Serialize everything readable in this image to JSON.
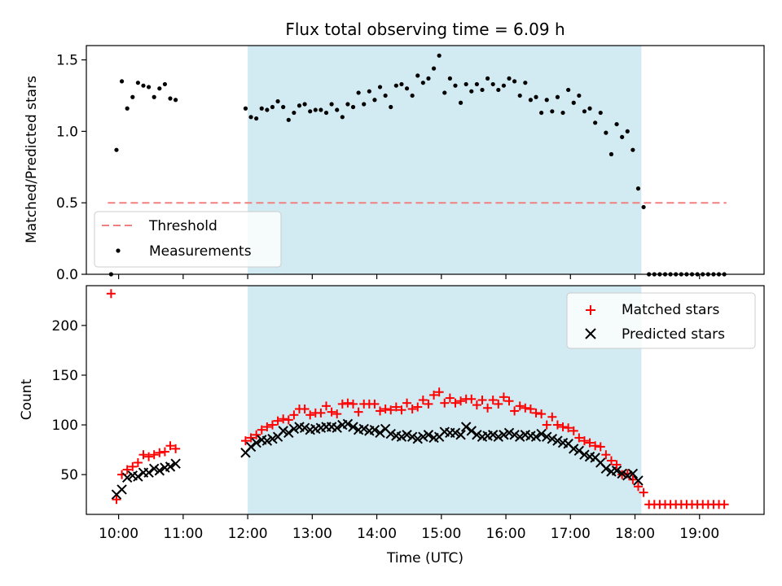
{
  "title": "Flux total observing time = 6.09 h",
  "colors": {
    "shade": "#add8e6",
    "threshold": "#f08080",
    "matched": "#ff0000",
    "predicted": "#000000",
    "measurements": "#000000"
  },
  "chart_data": [
    {
      "type": "scatter",
      "panel": "top",
      "ylabel": "Matched/Predicted stars",
      "ylim": [
        0,
        1.6
      ],
      "yticks": [
        0.0,
        0.5,
        1.0,
        1.5
      ],
      "ytick_labels": [
        "0.0",
        "0.5",
        "1.0",
        "1.5"
      ],
      "shaded_interval": [
        "12:00",
        "18:06"
      ],
      "legend_position": "lower-left",
      "threshold": {
        "name": "Threshold",
        "value": 0.5,
        "x_range": [
          "09:50",
          "19:25"
        ],
        "style": "dashed"
      },
      "series": [
        {
          "name": "Measurements",
          "x": [
            "09:53",
            "09:58",
            "10:03",
            "10:08",
            "10:13",
            "10:18",
            "10:23",
            "10:28",
            "10:33",
            "10:38",
            "10:43",
            "10:48",
            "10:53",
            "11:58",
            "12:03",
            "12:08",
            "12:13",
            "12:18",
            "12:23",
            "12:28",
            "12:33",
            "12:38",
            "12:43",
            "12:48",
            "12:53",
            "12:58",
            "13:03",
            "13:08",
            "13:13",
            "13:18",
            "13:23",
            "13:28",
            "13:33",
            "13:38",
            "13:43",
            "13:48",
            "13:53",
            "13:58",
            "14:03",
            "14:08",
            "14:13",
            "14:18",
            "14:23",
            "14:28",
            "14:33",
            "14:38",
            "14:43",
            "14:48",
            "14:53",
            "14:58",
            "15:03",
            "15:08",
            "15:13",
            "15:18",
            "15:23",
            "15:28",
            "15:33",
            "15:38",
            "15:43",
            "15:48",
            "15:53",
            "15:58",
            "16:03",
            "16:08",
            "16:13",
            "16:18",
            "16:23",
            "16:28",
            "16:33",
            "16:38",
            "16:43",
            "16:48",
            "16:53",
            "16:58",
            "17:03",
            "17:08",
            "17:13",
            "17:18",
            "17:23",
            "17:28",
            "17:33",
            "17:38",
            "17:43",
            "17:48",
            "17:53",
            "17:58",
            "18:03",
            "18:08",
            "18:13",
            "18:18",
            "18:23",
            "18:28",
            "18:33",
            "18:38",
            "18:43",
            "18:48",
            "18:53",
            "18:58",
            "19:03",
            "19:08",
            "19:13",
            "19:18",
            "19:23"
          ],
          "y": [
            0.0,
            0.87,
            1.35,
            1.16,
            1.24,
            1.34,
            1.32,
            1.31,
            1.24,
            1.3,
            1.33,
            1.23,
            1.22,
            1.16,
            1.1,
            1.09,
            1.16,
            1.15,
            1.17,
            1.21,
            1.17,
            1.08,
            1.13,
            1.18,
            1.19,
            1.14,
            1.15,
            1.15,
            1.13,
            1.19,
            1.15,
            1.1,
            1.19,
            1.17,
            1.27,
            1.19,
            1.28,
            1.22,
            1.31,
            1.25,
            1.17,
            1.32,
            1.33,
            1.3,
            1.25,
            1.39,
            1.34,
            1.37,
            1.44,
            1.53,
            1.27,
            1.37,
            1.32,
            1.2,
            1.33,
            1.28,
            1.33,
            1.29,
            1.37,
            1.33,
            1.29,
            1.32,
            1.37,
            1.35,
            1.25,
            1.34,
            1.22,
            1.24,
            1.13,
            1.22,
            1.14,
            1.24,
            1.13,
            1.29,
            1.2,
            1.25,
            1.14,
            1.16,
            1.06,
            1.13,
            0.99,
            0.84,
            1.05,
            0.96,
            1.0,
            0.87,
            0.6,
            0.47,
            0.0,
            0.0,
            0.0,
            0.0,
            0.0,
            0.0,
            0.0,
            0.0,
            0.0,
            0.0,
            0.0,
            0.0,
            0.0,
            0.0,
            0.0
          ]
        }
      ]
    },
    {
      "type": "scatter",
      "panel": "bottom",
      "ylabel": "Count",
      "xlabel": "Time (UTC)",
      "ylim": [
        10,
        240
      ],
      "yticks": [
        50,
        100,
        150,
        200
      ],
      "ytick_labels": [
        "50",
        "100",
        "150",
        "200"
      ],
      "xlim": [
        "09:30",
        "20:00"
      ],
      "xticks": [
        "10:00",
        "11:00",
        "12:00",
        "13:00",
        "14:00",
        "15:00",
        "16:00",
        "17:00",
        "18:00",
        "19:00"
      ],
      "shaded_interval": [
        "12:00",
        "18:06"
      ],
      "legend_position": "upper-right",
      "series": [
        {
          "name": "Matched stars",
          "marker": "plus",
          "x": [
            "09:53",
            "09:58",
            "10:03",
            "10:08",
            "10:13",
            "10:18",
            "10:23",
            "10:28",
            "10:33",
            "10:38",
            "10:43",
            "10:48",
            "10:53",
            "11:58",
            "12:03",
            "12:08",
            "12:13",
            "12:18",
            "12:23",
            "12:28",
            "12:33",
            "12:38",
            "12:43",
            "12:48",
            "12:53",
            "12:58",
            "13:03",
            "13:08",
            "13:13",
            "13:18",
            "13:23",
            "13:28",
            "13:33",
            "13:38",
            "13:43",
            "13:48",
            "13:53",
            "13:58",
            "14:03",
            "14:08",
            "14:13",
            "14:18",
            "14:23",
            "14:28",
            "14:33",
            "14:38",
            "14:43",
            "14:48",
            "14:53",
            "14:58",
            "15:03",
            "15:08",
            "15:13",
            "15:18",
            "15:23",
            "15:28",
            "15:33",
            "15:38",
            "15:43",
            "15:48",
            "15:53",
            "15:58",
            "16:03",
            "16:08",
            "16:13",
            "16:18",
            "16:23",
            "16:28",
            "16:33",
            "16:38",
            "16:43",
            "16:48",
            "16:53",
            "16:58",
            "17:03",
            "17:08",
            "17:13",
            "17:18",
            "17:23",
            "17:28",
            "17:33",
            "17:38",
            "17:43",
            "17:48",
            "17:53",
            "17:58",
            "18:03",
            "18:08",
            "18:13",
            "18:18",
            "18:23",
            "18:28",
            "18:33",
            "18:38",
            "18:43",
            "18:48",
            "18:53",
            "18:58",
            "19:03",
            "19:08",
            "19:13",
            "19:18",
            "19:23"
          ],
          "y": [
            232,
            25,
            50,
            55,
            58,
            62,
            70,
            68,
            70,
            72,
            73,
            79,
            76,
            84,
            87,
            90,
            95,
            98,
            100,
            104,
            106,
            105,
            110,
            116,
            116,
            110,
            112,
            112,
            119,
            113,
            111,
            121,
            122,
            121,
            113,
            121,
            121,
            121,
            114,
            116,
            115,
            118,
            115,
            122,
            116,
            118,
            125,
            121,
            130,
            133,
            122,
            127,
            122,
            124,
            126,
            126,
            120,
            125,
            117,
            125,
            121,
            128,
            124,
            114,
            119,
            117,
            116,
            112,
            111,
            100,
            108,
            100,
            98,
            97,
            94,
            87,
            84,
            82,
            79,
            78,
            70,
            64,
            60,
            50,
            51,
            45,
            38,
            32,
            20,
            20,
            20,
            20,
            20,
            20,
            20,
            20,
            20,
            20,
            20,
            20,
            20,
            20,
            20
          ]
        },
        {
          "name": "Predicted stars",
          "marker": "x",
          "x": [
            "09:53",
            "09:58",
            "10:03",
            "10:08",
            "10:13",
            "10:18",
            "10:23",
            "10:28",
            "10:33",
            "10:38",
            "10:43",
            "10:48",
            "10:53",
            "11:58",
            "12:03",
            "12:08",
            "12:13",
            "12:18",
            "12:23",
            "12:28",
            "12:33",
            "12:38",
            "12:43",
            "12:48",
            "12:53",
            "12:58",
            "13:03",
            "13:08",
            "13:13",
            "13:18",
            "13:23",
            "13:28",
            "13:33",
            "13:38",
            "13:43",
            "13:48",
            "13:53",
            "13:58",
            "14:03",
            "14:08",
            "14:13",
            "14:18",
            "14:23",
            "14:28",
            "14:33",
            "14:38",
            "14:43",
            "14:48",
            "14:53",
            "14:58",
            "15:03",
            "15:08",
            "15:13",
            "15:18",
            "15:23",
            "15:28",
            "15:33",
            "15:38",
            "15:43",
            "15:48",
            "15:53",
            "15:58",
            "16:03",
            "16:08",
            "16:13",
            "16:18",
            "16:23",
            "16:28",
            "16:33",
            "16:38",
            "16:43",
            "16:48",
            "16:53",
            "16:58",
            "17:03",
            "17:08",
            "17:13",
            "17:18",
            "17:23",
            "17:28",
            "17:33",
            "17:38",
            "17:43",
            "17:48",
            "17:53",
            "17:58",
            "18:03",
            "18:08",
            "18:13",
            "18:18",
            "18:23",
            "18:28",
            "18:33",
            "18:38",
            "18:43",
            "18:48",
            "18:53",
            "18:58",
            "19:03",
            "19:08",
            "19:13",
            "19:18",
            "19:23"
          ],
          "y": [
            null,
            30,
            35,
            47,
            49,
            48,
            52,
            52,
            56,
            54,
            57,
            58,
            61,
            72,
            78,
            82,
            85,
            84,
            86,
            88,
            94,
            92,
            96,
            98,
            97,
            95,
            96,
            97,
            98,
            98,
            97,
            100,
            101,
            98,
            95,
            96,
            94,
            95,
            92,
            96,
            91,
            89,
            88,
            90,
            88,
            86,
            88,
            90,
            87,
            88,
            93,
            92,
            92,
            90,
            98,
            94,
            90,
            88,
            89,
            90,
            88,
            90,
            92,
            90,
            88,
            90,
            89,
            88,
            91,
            88,
            86,
            84,
            82,
            81,
            76,
            74,
            70,
            68,
            67,
            62,
            56,
            53,
            54,
            51,
            49,
            51,
            44,
            null,
            null,
            null,
            null,
            null,
            null,
            null,
            null,
            null,
            null,
            null,
            null,
            null,
            null,
            null,
            null
          ]
        }
      ]
    }
  ]
}
